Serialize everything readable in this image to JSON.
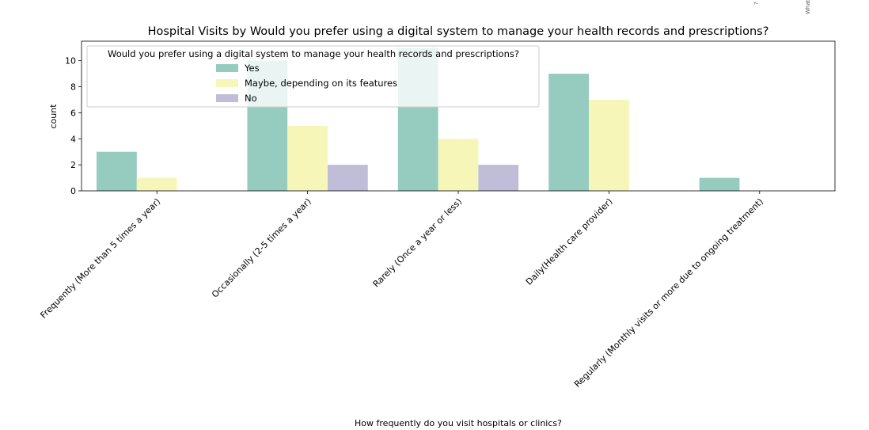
{
  "chart_data": {
    "type": "bar",
    "title": "Hospital Visits by Would you prefer using a digital system to manage your health records and prescriptions?",
    "xlabel": "How frequently do you visit hospitals or clinics?",
    "ylabel": "count",
    "ylim": [
      0,
      11.5
    ],
    "yticks": [
      0,
      2,
      4,
      6,
      8,
      10
    ],
    "categories": [
      "Frequently (More than 5 times a year)",
      "Occasionally (2-5 times a year)",
      "Rarely (Once a year or less)",
      "Daily(Health care provider)",
      "Regularly (Monthly visits or more due to ongoing treatment)"
    ],
    "series": [
      {
        "name": "Yes",
        "color": "#96cbc0",
        "values": [
          3,
          10,
          11,
          9,
          1
        ]
      },
      {
        "name": "Maybe, depending on its features",
        "color": "#f6f6b9",
        "values": [
          1,
          5,
          4,
          7,
          0
        ]
      },
      {
        "name": "No",
        "color": "#c0bdd8",
        "values": [
          0,
          2,
          2,
          0,
          0
        ]
      }
    ],
    "legend": {
      "title": "Would you prefer using a digital system to manage your health records and prescriptions?",
      "position": "upper-left"
    },
    "grid": false
  },
  "cropped_text": [
    "What",
    "?"
  ]
}
